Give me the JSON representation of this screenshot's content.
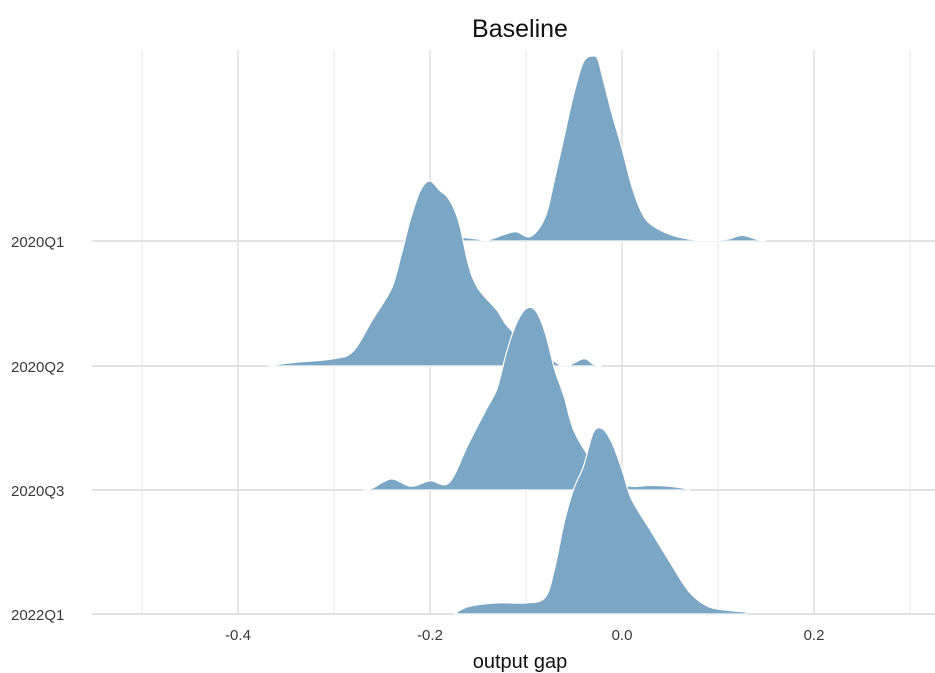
{
  "chart_data": {
    "type": "ridgeline",
    "title": "Baseline",
    "xlabel": "output gap",
    "ylabel": "",
    "xlim": [
      -0.5,
      0.31
    ],
    "x_ticks": [
      -0.4,
      -0.2,
      0.0,
      0.2
    ],
    "x_tick_labels": [
      "-0.4",
      "-0.2",
      "0.0",
      "0.2"
    ],
    "grid": true,
    "fill_color": "#7ba7c4",
    "categories": [
      "2020Q1",
      "2020Q2",
      "2020Q3",
      "2022Q1"
    ],
    "series": [
      {
        "category": "2020Q1",
        "density": [
          [
            -0.18,
            0.0
          ],
          [
            -0.17,
            0.02
          ],
          [
            -0.15,
            0.01
          ],
          [
            -0.14,
            0.005
          ],
          [
            -0.12,
            0.04
          ],
          [
            -0.11,
            0.05
          ],
          [
            -0.095,
            0.025
          ],
          [
            -0.08,
            0.13
          ],
          [
            -0.07,
            0.34
          ],
          [
            -0.06,
            0.57
          ],
          [
            -0.05,
            0.8
          ],
          [
            -0.04,
            0.97
          ],
          [
            -0.03,
            1.0
          ],
          [
            -0.025,
            0.98
          ],
          [
            -0.02,
            0.88
          ],
          [
            -0.01,
            0.68
          ],
          [
            0.0,
            0.5
          ],
          [
            0.01,
            0.3
          ],
          [
            0.02,
            0.16
          ],
          [
            0.03,
            0.09
          ],
          [
            0.05,
            0.035
          ],
          [
            0.07,
            0.01
          ],
          [
            0.09,
            0.005
          ],
          [
            0.11,
            0.01
          ],
          [
            0.125,
            0.03
          ],
          [
            0.14,
            0.01
          ],
          [
            0.15,
            0.0
          ]
        ]
      },
      {
        "category": "2020Q2",
        "density": [
          [
            -0.37,
            0.0
          ],
          [
            -0.34,
            0.02
          ],
          [
            -0.3,
            0.04
          ],
          [
            -0.28,
            0.08
          ],
          [
            -0.26,
            0.25
          ],
          [
            -0.24,
            0.42
          ],
          [
            -0.23,
            0.6
          ],
          [
            -0.22,
            0.8
          ],
          [
            -0.21,
            0.95
          ],
          [
            -0.2,
            1.0
          ],
          [
            -0.19,
            0.95
          ],
          [
            -0.18,
            0.9
          ],
          [
            -0.17,
            0.78
          ],
          [
            -0.16,
            0.55
          ],
          [
            -0.15,
            0.42
          ],
          [
            -0.13,
            0.3
          ],
          [
            -0.12,
            0.22
          ],
          [
            -0.1,
            0.12
          ],
          [
            -0.08,
            0.06
          ],
          [
            -0.06,
            0.0
          ],
          [
            -0.04,
            0.04
          ],
          [
            -0.03,
            0.01
          ],
          [
            -0.02,
            0.0
          ]
        ]
      },
      {
        "category": "2020Q3",
        "density": [
          [
            -0.27,
            0.0
          ],
          [
            -0.26,
            0.01
          ],
          [
            -0.24,
            0.06
          ],
          [
            -0.22,
            0.02
          ],
          [
            -0.2,
            0.05
          ],
          [
            -0.18,
            0.04
          ],
          [
            -0.16,
            0.25
          ],
          [
            -0.14,
            0.45
          ],
          [
            -0.13,
            0.55
          ],
          [
            -0.12,
            0.75
          ],
          [
            -0.11,
            0.9
          ],
          [
            -0.1,
            0.98
          ],
          [
            -0.09,
            0.97
          ],
          [
            -0.08,
            0.85
          ],
          [
            -0.07,
            0.65
          ],
          [
            -0.06,
            0.5
          ],
          [
            -0.05,
            0.32
          ],
          [
            -0.03,
            0.15
          ],
          [
            -0.01,
            0.05
          ],
          [
            0.01,
            0.02
          ],
          [
            0.03,
            0.025
          ],
          [
            0.05,
            0.02
          ],
          [
            0.07,
            0.005
          ]
        ]
      },
      {
        "category": "2022Q1",
        "density": [
          [
            -0.175,
            0.0
          ],
          [
            -0.16,
            0.04
          ],
          [
            -0.13,
            0.06
          ],
          [
            -0.1,
            0.06
          ],
          [
            -0.08,
            0.09
          ],
          [
            -0.07,
            0.25
          ],
          [
            -0.06,
            0.5
          ],
          [
            -0.05,
            0.68
          ],
          [
            -0.04,
            0.8
          ],
          [
            -0.03,
            0.98
          ],
          [
            -0.02,
            1.0
          ],
          [
            -0.01,
            0.92
          ],
          [
            0.0,
            0.78
          ],
          [
            0.01,
            0.62
          ],
          [
            0.03,
            0.45
          ],
          [
            0.05,
            0.28
          ],
          [
            0.07,
            0.12
          ],
          [
            0.09,
            0.04
          ],
          [
            0.11,
            0.02
          ],
          [
            0.13,
            0.01
          ]
        ]
      }
    ]
  }
}
